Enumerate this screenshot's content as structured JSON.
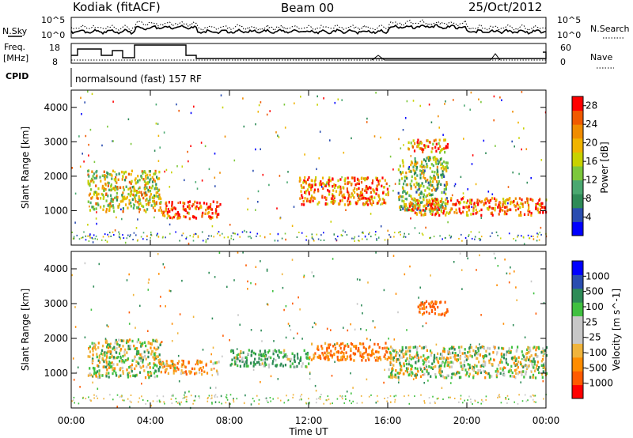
{
  "header": {
    "station": "Kodiak (fitACF)",
    "beam": "Beam 00",
    "date": "25/Oct/2012"
  },
  "top_panels": {
    "nsky_label": "N.Sky",
    "nsearch_label": "N.Search",
    "freq_label_1": "Freq.",
    "freq_label_2": "[MHz]",
    "nave_label": "Nave",
    "cpid_label": "CPID",
    "cpid_text": "normalsound (fast) 157 RF",
    "noise_ticks": {
      "top": "10^5",
      "bottom": "10^0"
    },
    "freq_ticks": [
      "18",
      "8"
    ],
    "nave_ticks": [
      "60",
      "0"
    ]
  },
  "colors": {
    "power_scale": [
      "#0000ff",
      "#2a4db0",
      "#2e8b57",
      "#4aa870",
      "#7cc83c",
      "#c8d200",
      "#f0b400",
      "#f08c00",
      "#f05a00",
      "#ff0000"
    ],
    "velocity_scale": [
      "#ff0000",
      "#ff5a00",
      "#ff8c00",
      "#f0b43c",
      "#c8c8c8",
      "#c8c8c8",
      "#40c040",
      "#2e8b57",
      "#2a4db0",
      "#0000ff"
    ]
  },
  "chart_data": [
    {
      "type": "heatmap",
      "title": "",
      "xlabel": "Time UT",
      "ylabel": "Slant Range [km]",
      "x_ticks": [
        "00:00",
        "04:00",
        "08:00",
        "12:00",
        "16:00",
        "20:00",
        "00:00"
      ],
      "y_ticks": [
        "1000",
        "2000",
        "3000",
        "4000"
      ],
      "xlim": [
        0,
        24
      ],
      "ylim": [
        0,
        4500
      ],
      "colorbar_label": "Power [dB]",
      "colorbar_ticks": [
        "4",
        "8",
        "12",
        "16",
        "20",
        "24",
        "28"
      ],
      "colorbar_range": [
        0,
        30
      ],
      "regions": [
        {
          "x": [
            0.8,
            4.5
          ],
          "y": [
            1000,
            2200
          ],
          "value": 17
        },
        {
          "x": [
            4.5,
            7.5
          ],
          "y": [
            800,
            1300
          ],
          "value": 27
        },
        {
          "x": [
            11.5,
            16.0
          ],
          "y": [
            1200,
            2000
          ],
          "value": 24
        },
        {
          "x": [
            16.5,
            19.0
          ],
          "y": [
            1000,
            2600
          ],
          "value": 14
        },
        {
          "x": [
            17.0,
            24.0
          ],
          "y": [
            900,
            1400
          ],
          "value": 24
        },
        {
          "x": [
            17.0,
            19.0
          ],
          "y": [
            2700,
            3100
          ],
          "value": 22
        }
      ]
    },
    {
      "type": "heatmap",
      "title": "",
      "xlabel": "Time UT",
      "ylabel": "Slant Range [km]",
      "x_ticks": [
        "00:00",
        "04:00",
        "08:00",
        "12:00",
        "16:00",
        "20:00",
        "00:00"
      ],
      "y_ticks": [
        "1000",
        "2000",
        "3000",
        "4000"
      ],
      "xlim": [
        0,
        24
      ],
      "ylim": [
        0,
        4500
      ],
      "colorbar_label": "Velocity [m s^-1]",
      "colorbar_ticks": [
        "1000",
        "500",
        "100",
        "25",
        "-25",
        "-100",
        "-500",
        "-1000"
      ],
      "regions": [
        {
          "x": [
            0.8,
            4.5
          ],
          "y": [
            900,
            2000
          ],
          "value": 0
        },
        {
          "x": [
            4.5,
            7.5
          ],
          "y": [
            1000,
            1400
          ],
          "value": -100
        },
        {
          "x": [
            8.0,
            12.0
          ],
          "y": [
            1200,
            1700
          ],
          "value": 100
        },
        {
          "x": [
            12.0,
            16.0
          ],
          "y": [
            1400,
            1900
          ],
          "value": -200
        },
        {
          "x": [
            17.5,
            19.0
          ],
          "y": [
            2700,
            3100
          ],
          "value": -300
        },
        {
          "x": [
            16.0,
            24.0
          ],
          "y": [
            900,
            1800
          ],
          "value": 0
        }
      ]
    }
  ]
}
